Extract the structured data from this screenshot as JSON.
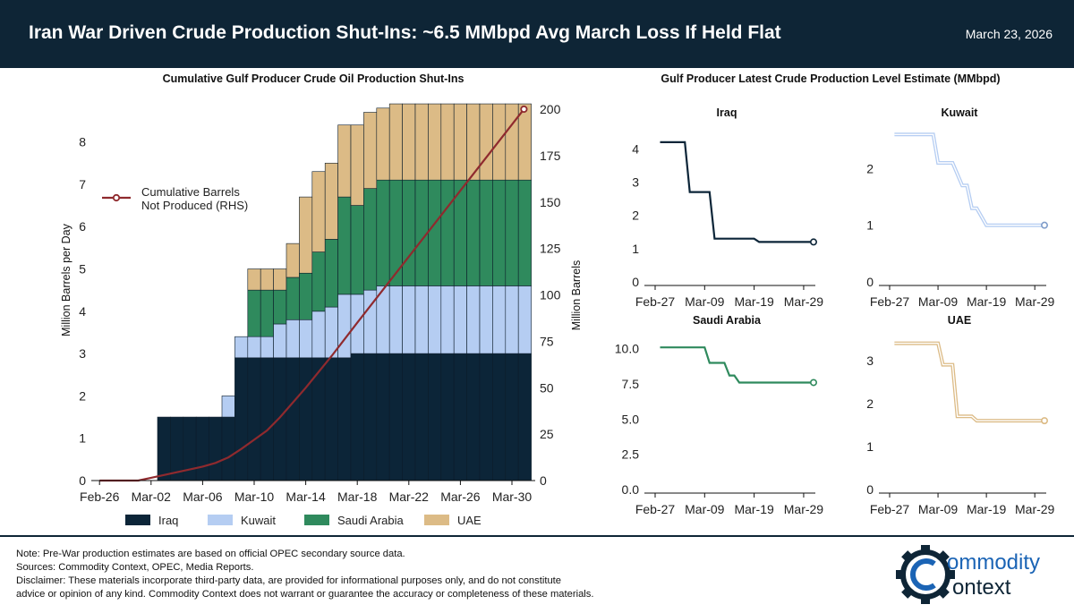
{
  "header": {
    "title": "Iran War Driven Crude Production Shut-Ins: ~6.5 MMbpd Avg March Loss If Held Flat",
    "date": "March 23, 2026"
  },
  "colors": {
    "navy": "#0e2536",
    "iraq": "#0c2538",
    "kuwait": "#b5cdf2",
    "saudi": "#2f8a5d",
    "uae": "#dcbb86",
    "cumulative": "#8f2a2e"
  },
  "chart_data": [
    {
      "type": "bar",
      "stacked": true,
      "title": "Cumulative Gulf Producer Crude Oil Production Shut-Ins",
      "ylabel": "Million Barrels per Day",
      "y2label": "Million Barrels",
      "ylim": [
        0,
        9
      ],
      "y2lim": [
        0,
        200
      ],
      "yticks": [
        0,
        1,
        2,
        3,
        4,
        5,
        6,
        7,
        8
      ],
      "y2ticks": [
        0,
        25,
        50,
        75,
        100,
        125,
        150,
        175,
        200
      ],
      "xtick_labels": [
        "Feb-26",
        "Mar-02",
        "Mar-06",
        "Mar-10",
        "Mar-14",
        "Mar-18",
        "Mar-22",
        "Mar-26",
        "Mar-30"
      ],
      "categories": [
        "Feb-26",
        "Feb-27",
        "Feb-28",
        "Mar-01",
        "Mar-02",
        "Mar-03",
        "Mar-04",
        "Mar-05",
        "Mar-06",
        "Mar-07",
        "Mar-08",
        "Mar-09",
        "Mar-10",
        "Mar-11",
        "Mar-12",
        "Mar-13",
        "Mar-14",
        "Mar-15",
        "Mar-16",
        "Mar-17",
        "Mar-18",
        "Mar-19",
        "Mar-20",
        "Mar-21",
        "Mar-22",
        "Mar-23",
        "Mar-24",
        "Mar-25",
        "Mar-26",
        "Mar-27",
        "Mar-28",
        "Mar-29",
        "Mar-30",
        "Mar-31"
      ],
      "series": [
        {
          "name": "Iraq",
          "values": [
            0,
            0,
            0,
            0,
            0,
            1.5,
            1.5,
            1.5,
            1.5,
            1.5,
            1.5,
            2.9,
            2.9,
            2.9,
            2.9,
            2.9,
            2.9,
            2.9,
            2.9,
            2.9,
            3.0,
            3.0,
            3.0,
            3.0,
            3.0,
            3.0,
            3.0,
            3.0,
            3.0,
            3.0,
            3.0,
            3.0,
            3.0,
            3.0
          ]
        },
        {
          "name": "Kuwait",
          "values": [
            0,
            0,
            0,
            0,
            0,
            0,
            0,
            0,
            0,
            0,
            0.5,
            0.5,
            0.5,
            0.5,
            0.8,
            0.9,
            0.9,
            1.1,
            1.2,
            1.5,
            1.4,
            1.5,
            1.6,
            1.6,
            1.6,
            1.6,
            1.6,
            1.6,
            1.6,
            1.6,
            1.6,
            1.6,
            1.6,
            1.6
          ]
        },
        {
          "name": "Saudi Arabia",
          "values": [
            0,
            0,
            0,
            0,
            0,
            0,
            0,
            0,
            0,
            0,
            0,
            0,
            1.1,
            1.1,
            0.8,
            1.0,
            1.1,
            1.4,
            1.6,
            2.3,
            2.1,
            2.4,
            2.5,
            2.5,
            2.5,
            2.5,
            2.5,
            2.5,
            2.5,
            2.5,
            2.5,
            2.5,
            2.5,
            2.5
          ]
        },
        {
          "name": "UAE",
          "values": [
            0,
            0,
            0,
            0,
            0,
            0,
            0,
            0,
            0,
            0,
            0,
            0,
            0.5,
            0.5,
            0.5,
            0.8,
            1.8,
            1.9,
            1.8,
            1.7,
            1.9,
            1.8,
            1.7,
            1.8,
            1.8,
            1.8,
            1.8,
            1.8,
            1.8,
            1.8,
            1.8,
            1.8,
            1.8,
            1.8
          ]
        }
      ],
      "cumulative_line": {
        "name": "Cumulative Barrels\nNot Produced (RHS)",
        "axis": "right",
        "x": [
          "Feb-26",
          "Mar-01",
          "Mar-02",
          "Mar-06",
          "Mar-07",
          "Mar-08",
          "Mar-09",
          "Mar-10",
          "Mar-11",
          "Mar-12",
          "Mar-14",
          "Mar-16",
          "Mar-18",
          "Mar-31"
        ],
        "values": [
          0,
          0,
          1.5,
          7.5,
          9.5,
          12.5,
          17,
          22,
          27,
          34,
          50,
          67,
          85,
          200
        ]
      },
      "legend": [
        "Iraq",
        "Kuwait",
        "Saudi Arabia",
        "UAE"
      ]
    },
    {
      "type": "line",
      "title": "Gulf Producer Latest Crude Production Level Estimate (MMbpd)",
      "xtick_labels": [
        "Feb-27",
        "Mar-09",
        "Mar-19",
        "Mar-29"
      ],
      "panels": [
        {
          "name": "Iraq",
          "ylim": [
            0,
            4.6
          ],
          "yticks": [
            "0",
            "1",
            "2",
            "3",
            "4"
          ],
          "points": [
            [
              "Feb-28",
              4.2
            ],
            [
              "Mar-05",
              4.2
            ],
            [
              "Mar-06",
              2.7
            ],
            [
              "Mar-10",
              2.7
            ],
            [
              "Mar-11",
              1.3
            ],
            [
              "Mar-19",
              1.3
            ],
            [
              "Mar-20",
              1.2
            ],
            [
              "Mar-31",
              1.2
            ]
          ]
        },
        {
          "name": "Kuwait",
          "ylim": [
            0,
            2.7
          ],
          "yticks": [
            "0",
            "1",
            "2"
          ],
          "points": [
            [
              "Feb-28",
              2.6
            ],
            [
              "Mar-08",
              2.6
            ],
            [
              "Mar-09",
              2.1
            ],
            [
              "Mar-12",
              2.1
            ],
            [
              "Mar-14",
              1.7
            ],
            [
              "Mar-15",
              1.7
            ],
            [
              "Mar-16",
              1.3
            ],
            [
              "Mar-17",
              1.3
            ],
            [
              "Mar-19",
              1.0
            ],
            [
              "Mar-31",
              1.0
            ]
          ]
        },
        {
          "name": "Saudi Arabia",
          "ylim": [
            0,
            11
          ],
          "yticks": [
            "0.0",
            "2.5",
            "5.0",
            "7.5",
            "10.0"
          ],
          "points": [
            [
              "Feb-28",
              10.1
            ],
            [
              "Mar-09",
              10.1
            ],
            [
              "Mar-10",
              9.0
            ],
            [
              "Mar-13",
              9.0
            ],
            [
              "Mar-14",
              8.1
            ],
            [
              "Mar-15",
              8.1
            ],
            [
              "Mar-16",
              7.6
            ],
            [
              "Mar-31",
              7.6
            ]
          ]
        },
        {
          "name": "UAE",
          "ylim": [
            0,
            3.6
          ],
          "yticks": [
            "0",
            "1",
            "2",
            "3"
          ],
          "points": [
            [
              "Feb-28",
              3.4
            ],
            [
              "Mar-09",
              3.4
            ],
            [
              "Mar-10",
              2.9
            ],
            [
              "Mar-12",
              2.9
            ],
            [
              "Mar-13",
              1.7
            ],
            [
              "Mar-16",
              1.7
            ],
            [
              "Mar-17",
              1.6
            ],
            [
              "Mar-31",
              1.6
            ]
          ]
        }
      ]
    }
  ],
  "footer": {
    "note": "Note: Pre-War production estimates are based on official OPEC secondary source data.",
    "sources": "Sources: Commodity Context, OPEC, Media Reports.",
    "disclaimer1": "Disclaimer: These materials incorporate third-party data, are provided for informational purposes only, and do not constitute",
    "disclaimer2": "advice or opinion of any kind. Commodity Context does not warrant or guarantee the accuracy or completeness of these materials."
  },
  "logo": {
    "line1": "ommodity",
    "line2": "ontext"
  }
}
